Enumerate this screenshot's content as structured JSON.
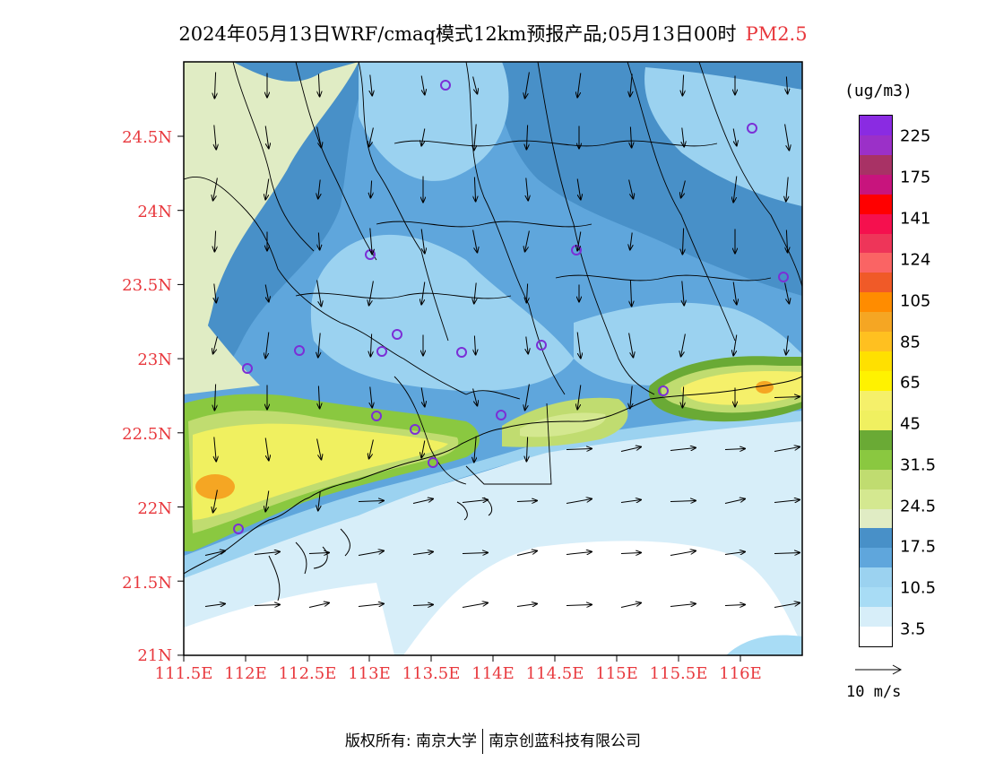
{
  "title": {
    "main": "2024年05月13日WRF/cmaq模式12km预报产品;05月13日00时",
    "variable": "PM2.5"
  },
  "map": {
    "lat_ticks": [
      "24.5N",
      "24N",
      "23.5N",
      "23N",
      "22.5N",
      "22N",
      "21.5N",
      "21N"
    ],
    "lon_ticks": [
      "111.5E",
      "112E",
      "112.5E",
      "113E",
      "113.5E",
      "114E",
      "114.5E",
      "115E",
      "115.5E",
      "116E"
    ],
    "label_color": "#e8383d",
    "station_marker_color": "#7b2fd6",
    "wind_field": "mostly southward over land, eastward over the sea"
  },
  "legend": {
    "units": "(ug/m3)",
    "labels": [
      "225",
      "175",
      "141",
      "124",
      "105",
      "85",
      "65",
      "45",
      "31.5",
      "24.5",
      "17.5",
      "10.5",
      "3.5"
    ],
    "colors": [
      "#8a2be2",
      "#9b30c8",
      "#a83265",
      "#c8147d",
      "#ff0000",
      "#f5104e",
      "#ee3559",
      "#fa6464",
      "#f05a28",
      "#ff8c00",
      "#f5a623",
      "#ffc020",
      "#ffe000",
      "#fff200",
      "#f5f06a",
      "#f0f060",
      "#6aaa35",
      "#8ac840",
      "#c0dc70",
      "#d4e890",
      "#e0ecc4",
      "#4890c8",
      "#5fa6dc",
      "#9bd2f0",
      "#a8dcf5",
      "#d7eef9",
      "#ffffff"
    ]
  },
  "wind_reference": {
    "label": "10 m/s"
  },
  "copyright": {
    "left": "版权所有: 南京大学",
    "right": "南京创蓝科技有限公司"
  }
}
